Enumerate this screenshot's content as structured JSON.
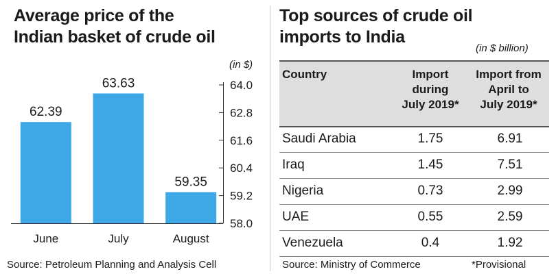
{
  "left": {
    "title_line1": "Average price of the",
    "title_line2": "Indian basket of crude oil",
    "unit": "(in $)",
    "source": "Source: Petroleum Planning and Analysis Cell"
  },
  "chart_data": {
    "type": "bar",
    "title": "Average price of the Indian basket of crude oil",
    "categories": [
      "June",
      "July",
      "August"
    ],
    "values": [
      62.39,
      63.63,
      59.35
    ],
    "value_labels": [
      "62.39",
      "63.63",
      "59.35"
    ],
    "ylim": [
      58.0,
      64.0
    ],
    "yticks": [
      "58.0",
      "59.2",
      "60.4",
      "61.6",
      "62.8",
      "64.0"
    ],
    "ytick_values": [
      58.0,
      59.2,
      60.4,
      61.6,
      62.8,
      64.0
    ],
    "yaxis_side": "right",
    "unit": "(in $)",
    "bar_color": "#3ea7e6",
    "grid": false
  },
  "right": {
    "title_line1": "Top sources of crude oil",
    "title_line2": "imports to India",
    "unit": "(in $ billion)",
    "headers": {
      "country": "Country",
      "col1": [
        "Import",
        "during",
        "July 2019*"
      ],
      "col2": [
        "Import from",
        "April to",
        "July 2019*"
      ]
    },
    "rows": [
      {
        "country": "Saudi Arabia",
        "july": "1.75",
        "ytd": "6.91"
      },
      {
        "country": "Iraq",
        "july": "1.45",
        "ytd": "7.51"
      },
      {
        "country": "Nigeria",
        "july": "0.73",
        "ytd": "2.99"
      },
      {
        "country": "UAE",
        "july": "0.55",
        "ytd": "2.59"
      },
      {
        "country": "Venezuela",
        "july": "0.4",
        "ytd": "1.92"
      }
    ],
    "source": "Source: Ministry of Commerce",
    "note": "*Provisional"
  }
}
